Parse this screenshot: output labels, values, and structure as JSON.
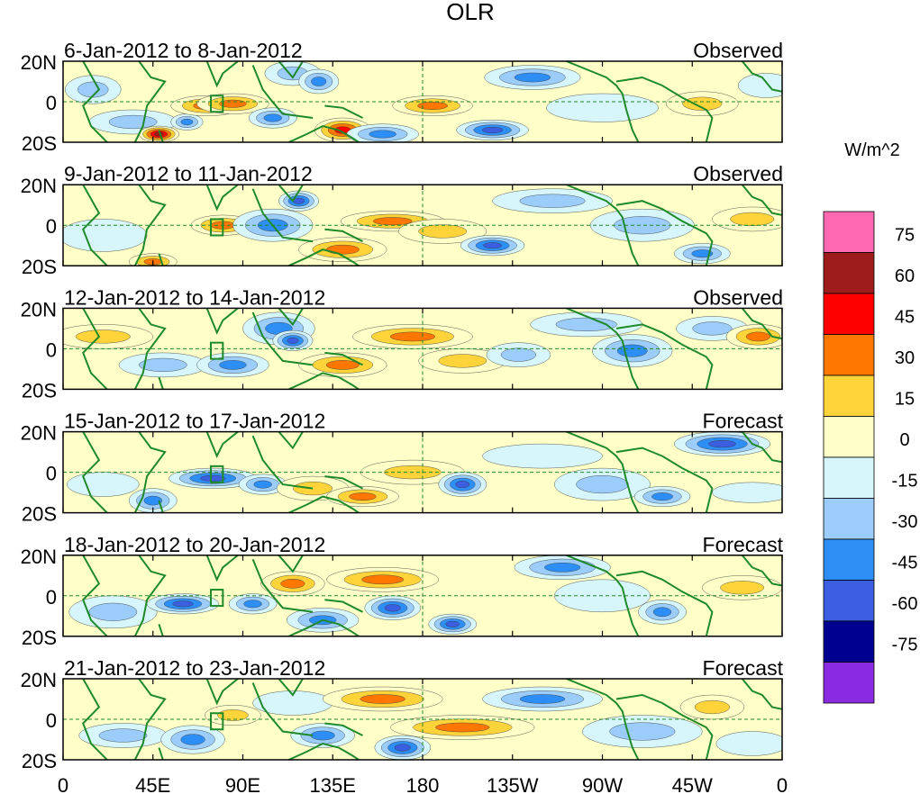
{
  "chart_data": {
    "type": "heatmap",
    "title": "OLR",
    "units": "W/m^2",
    "x_tick_labels": [
      "0",
      "45E",
      "90E",
      "135E",
      "180",
      "135W",
      "90W",
      "45W",
      "0"
    ],
    "y_tick_labels": [
      "20N",
      "0",
      "20S"
    ],
    "colorbar_levels": [
      "75",
      "60",
      "45",
      "30",
      "15",
      "0",
      "-15",
      "-30",
      "-45",
      "-60",
      "-75"
    ],
    "colorbar_colors": [
      "#ff69b4",
      "#9e1c1c",
      "#ff0000",
      "#ff7700",
      "#ffd43a",
      "#ffffc8",
      "#d6f6fb",
      "#9ccdfa",
      "#2d8ff5",
      "#3c5ee0",
      "#000090",
      "#8a2be2"
    ],
    "panels": [
      {
        "date_range": "6-Jan-2012 to 8-Jan-2012",
        "kind": "Observed"
      },
      {
        "date_range": "9-Jan-2012 to 11-Jan-2012",
        "kind": "Observed"
      },
      {
        "date_range": "12-Jan-2012 to 14-Jan-2012",
        "kind": "Observed"
      },
      {
        "date_range": "15-Jan-2012 to 17-Jan-2012",
        "kind": "Forecast"
      },
      {
        "date_range": "18-Jan-2012 to 20-Jan-2012",
        "kind": "Forecast"
      },
      {
        "date_range": "21-Jan-2012 to 23-Jan-2012",
        "kind": "Forecast"
      }
    ],
    "x_range_deg_east": [
      0,
      360
    ],
    "y_range_lat": [
      -20,
      20
    ]
  }
}
